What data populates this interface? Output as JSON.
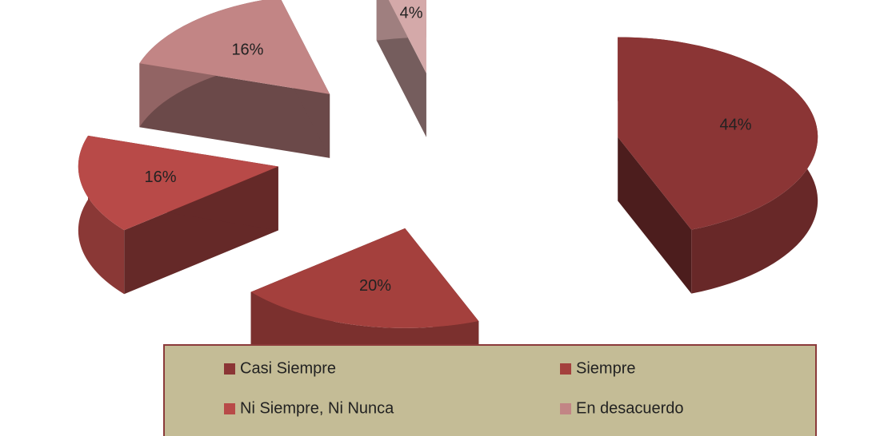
{
  "chart_data": {
    "type": "pie3d",
    "categories": [
      "Casi Siempre",
      "Siempre",
      "Ni Siempre, Ni Nunca",
      "En desacuerdo",
      null
    ],
    "values": [
      44,
      20,
      16,
      16,
      4
    ],
    "value_labels": [
      "44%",
      "20%",
      "16%",
      "16%",
      "4%"
    ],
    "colors": [
      "#8b3535",
      "#a4403d",
      "#b84a48",
      "#c28585",
      "#d4a9a9"
    ],
    "legend": "bottom"
  }
}
